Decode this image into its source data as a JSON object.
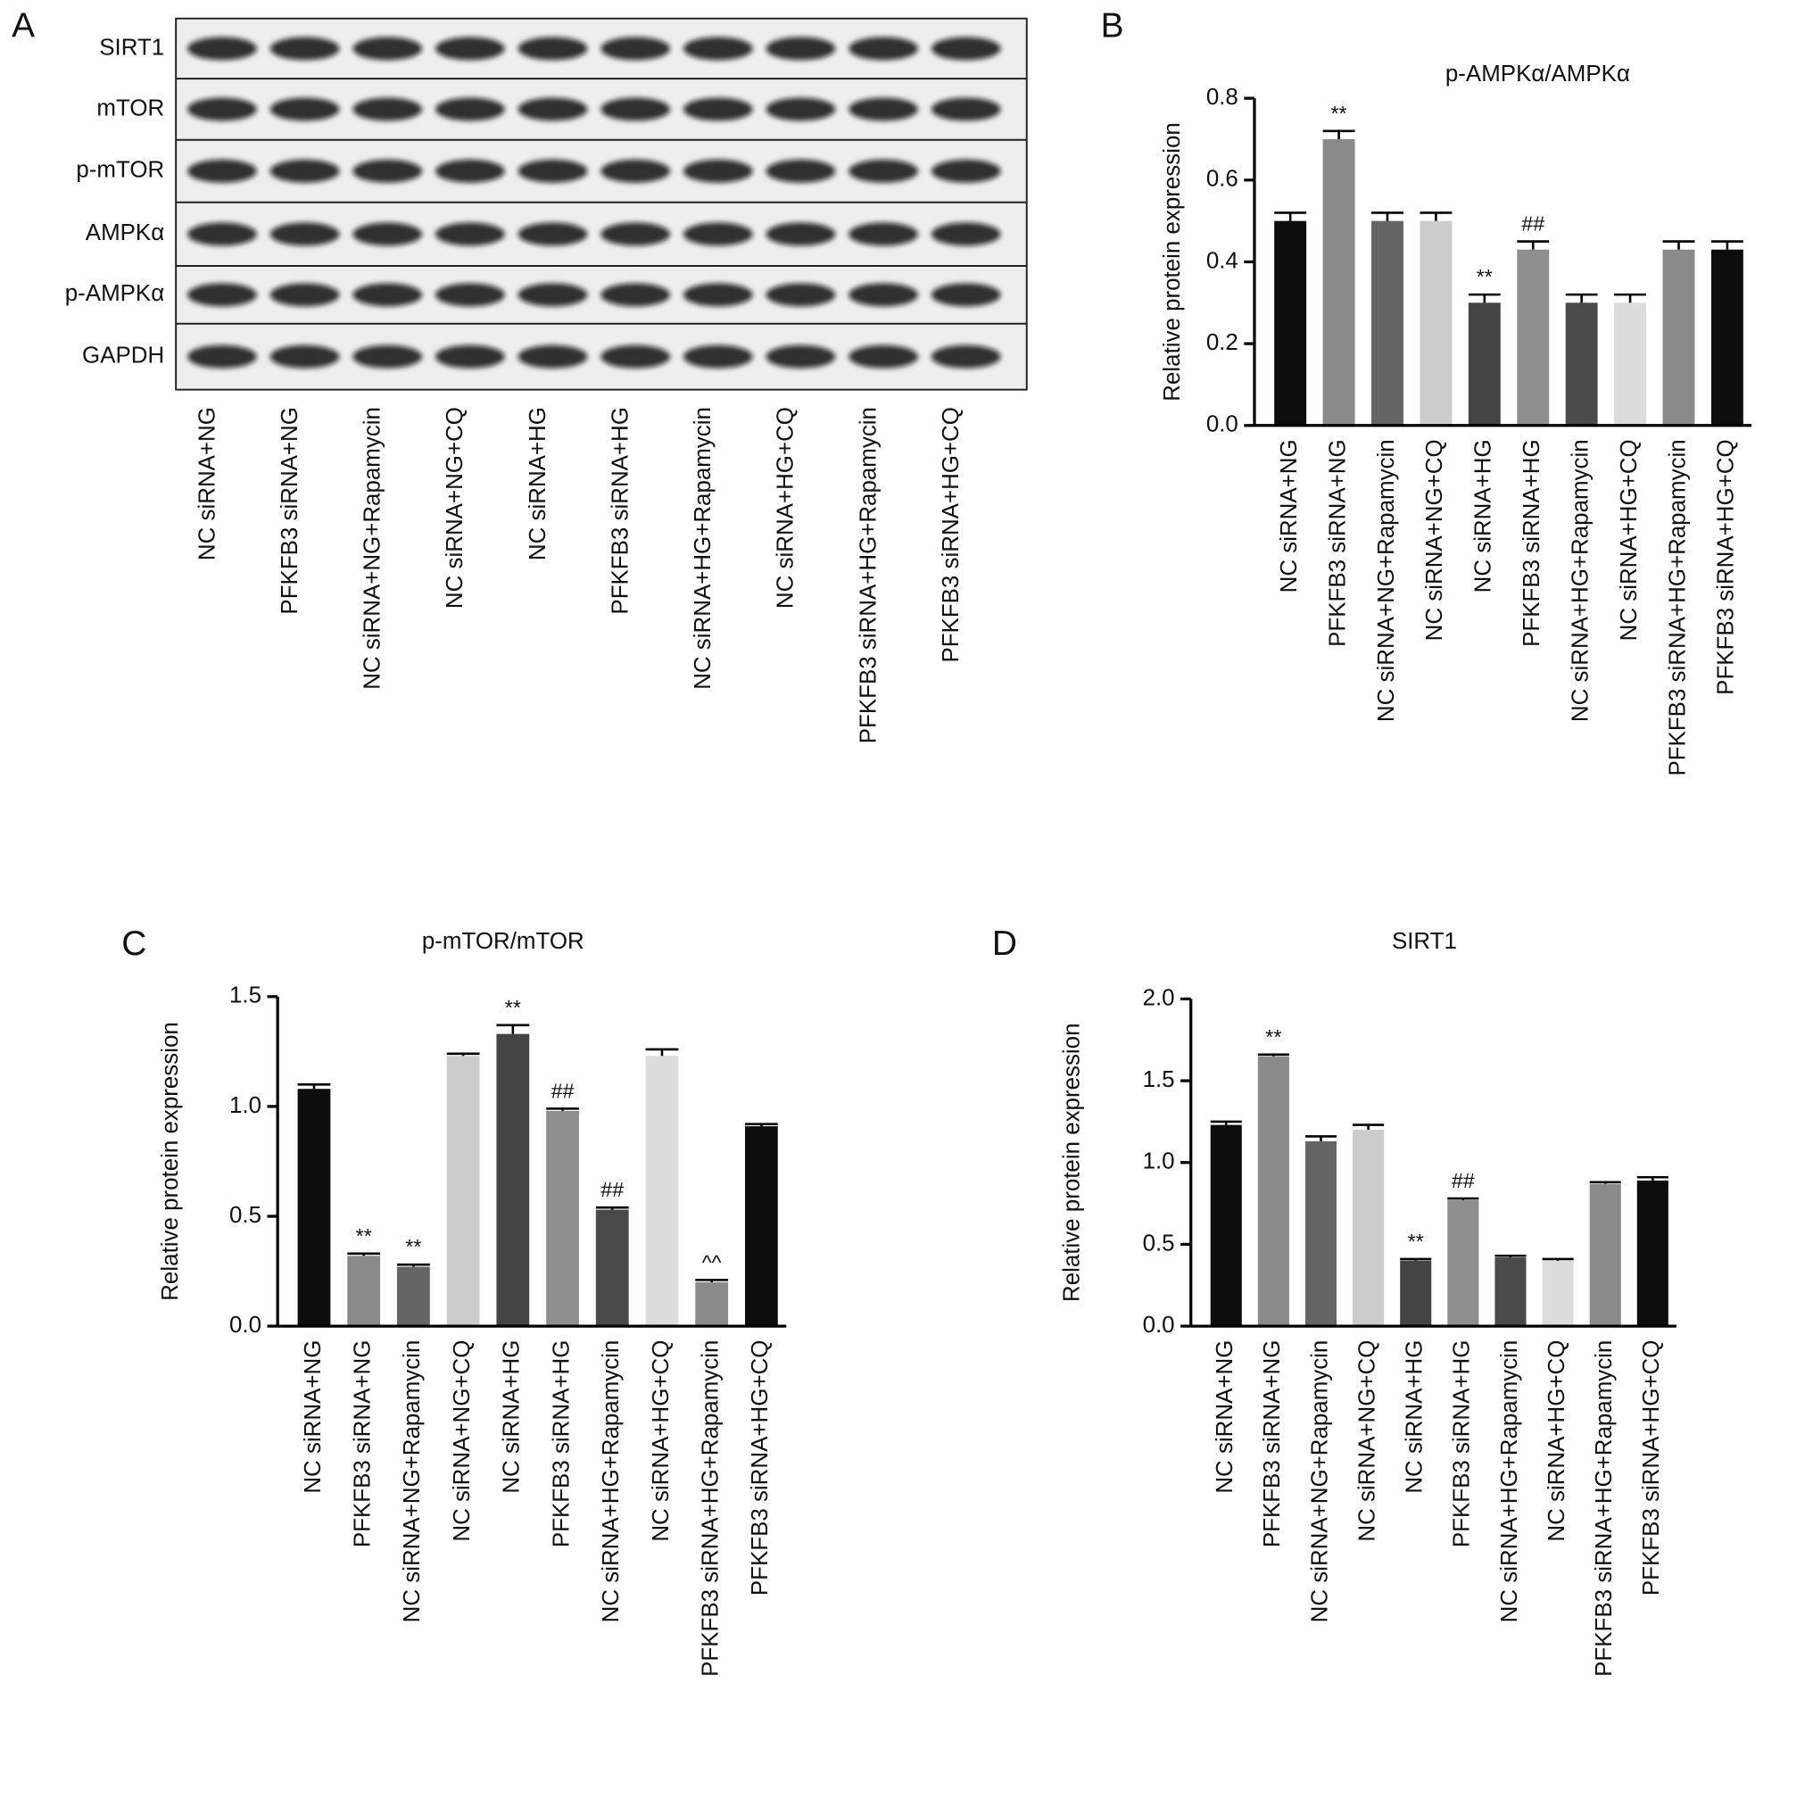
{
  "blot": {
    "label": "A",
    "rows": [
      "SIRT1",
      "mTOR",
      "p-mTOR",
      "AMPKα",
      "p-AMPKα",
      "GAPDH"
    ],
    "lanes": [
      "NC siRNA+NG",
      "PFKFB3 siRNA+NG",
      "NC siRNA+NG+Rapamycin",
      "NC siRNA+NG+CQ",
      "NC siRNA+HG",
      "PFKFB3 siRNA+HG",
      "NC siRNA+HG+Rapamycin",
      "NC siRNA+HG+CQ",
      "PFKFB3 siRNA+HG+Rapamycin",
      "PFKFB3 siRNA+HG+CQ"
    ]
  },
  "chart_data": [
    {
      "type": "bar",
      "panel": "B",
      "title": "p-AMPKα/AMPKα",
      "ylabel": "Relative protein expression",
      "categories": [
        "NC siRNA+NG",
        "PFKFB3 siRNA+NG",
        "NC siRNA+NG+Rapamycin",
        "NC siRNA+NG+CQ",
        "NC siRNA+HG",
        "PFKFB3 siRNA+HG",
        "NC siRNA+HG+Rapamycin",
        "NC siRNA+HG+CQ",
        "PFKFB3 siRNA+HG+Rapamycin",
        "PFKFB3 siRNA+HG+CQ"
      ],
      "values": [
        0.5,
        0.7,
        0.5,
        0.5,
        0.3,
        0.43,
        0.3,
        0.3,
        0.43,
        0.43
      ],
      "errors": [
        0.02,
        0.02,
        0.02,
        0.02,
        0.02,
        0.02,
        0.02,
        0.02,
        0.02,
        0.02
      ],
      "annotations": [
        null,
        "**",
        null,
        null,
        "**",
        "##",
        null,
        null,
        null,
        null
      ],
      "colors": [
        "#0d0d0d",
        "#8a8a8a",
        "#656565",
        "#cccccc",
        "#444444",
        "#8f8f8f",
        "#4a4a4a",
        "#dcdcdc",
        "#8a8a8a",
        "#0d0d0d"
      ],
      "ylim": [
        0,
        0.8
      ],
      "yticks": [
        {
          "value": 0,
          "label": "0.0"
        },
        {
          "value": 0.2,
          "label": "0.2"
        },
        {
          "value": 0.4,
          "label": "0.4"
        },
        {
          "value": 0.6,
          "label": "0.6"
        },
        {
          "value": 0.8,
          "label": "0.8"
        }
      ]
    },
    {
      "type": "bar",
      "panel": "C",
      "title": "p-mTOR/mTOR",
      "ylabel": "Relative protein expression",
      "categories": [
        "NC siRNA+NG",
        "PFKFB3 siRNA+NG",
        "NC siRNA+NG+Rapamycin",
        "NC siRNA+NG+CQ",
        "NC siRNA+HG",
        "PFKFB3 siRNA+HG",
        "NC siRNA+HG+Rapamycin",
        "NC siRNA+HG+CQ",
        "PFKFB3 siRNA+HG+Rapamycin",
        "PFKFB3 siRNA+HG+CQ"
      ],
      "values": [
        1.08,
        0.32,
        0.27,
        1.23,
        1.33,
        0.98,
        0.53,
        1.23,
        0.2,
        0.91
      ],
      "errors": [
        0.02,
        0.01,
        0.01,
        0.01,
        0.04,
        0.01,
        0.01,
        0.03,
        0.01,
        0.01
      ],
      "annotations": [
        null,
        "**",
        "**",
        null,
        "**",
        "##",
        "##",
        null,
        "^^",
        null
      ],
      "colors": [
        "#0d0d0d",
        "#8a8a8a",
        "#656565",
        "#cccccc",
        "#444444",
        "#8f8f8f",
        "#4a4a4a",
        "#dcdcdc",
        "#8a8a8a",
        "#0d0d0d"
      ],
      "ylim": [
        0,
        1.5
      ],
      "yticks": [
        {
          "value": 0,
          "label": "0.0"
        },
        {
          "value": 0.5,
          "label": "0.5"
        },
        {
          "value": 1,
          "label": "1.0"
        },
        {
          "value": 1.5,
          "label": "1.5"
        }
      ]
    },
    {
      "type": "bar",
      "panel": "D",
      "title": "SIRT1",
      "ylabel": "Relative protein expression",
      "categories": [
        "NC siRNA+NG",
        "PFKFB3 siRNA+NG",
        "NC siRNA+NG+Rapamycin",
        "NC siRNA+NG+CQ",
        "NC siRNA+HG",
        "PFKFB3 siRNA+HG",
        "NC siRNA+HG+Rapamycin",
        "NC siRNA+HG+CQ",
        "PFKFB3 siRNA+HG+Rapamycin",
        "PFKFB3 siRNA+HG+CQ"
      ],
      "values": [
        1.23,
        1.65,
        1.13,
        1.2,
        0.4,
        0.77,
        0.42,
        0.4,
        0.87,
        0.89
      ],
      "errors": [
        0.02,
        0.01,
        0.03,
        0.03,
        0.01,
        0.01,
        0.01,
        0.01,
        0.01,
        0.02
      ],
      "annotations": [
        null,
        "**",
        null,
        null,
        "**",
        "##",
        null,
        null,
        null,
        null
      ],
      "colors": [
        "#0d0d0d",
        "#8a8a8a",
        "#656565",
        "#cccccc",
        "#444444",
        "#8f8f8f",
        "#4a4a4a",
        "#dcdcdc",
        "#8a8a8a",
        "#0d0d0d"
      ],
      "ylim": [
        0,
        2
      ],
      "yticks": [
        {
          "value": 0,
          "label": "0.0"
        },
        {
          "value": 0.5,
          "label": "0.5"
        },
        {
          "value": 1,
          "label": "1.0"
        },
        {
          "value": 1.5,
          "label": "1.5"
        },
        {
          "value": 2,
          "label": "2.0"
        }
      ]
    }
  ]
}
